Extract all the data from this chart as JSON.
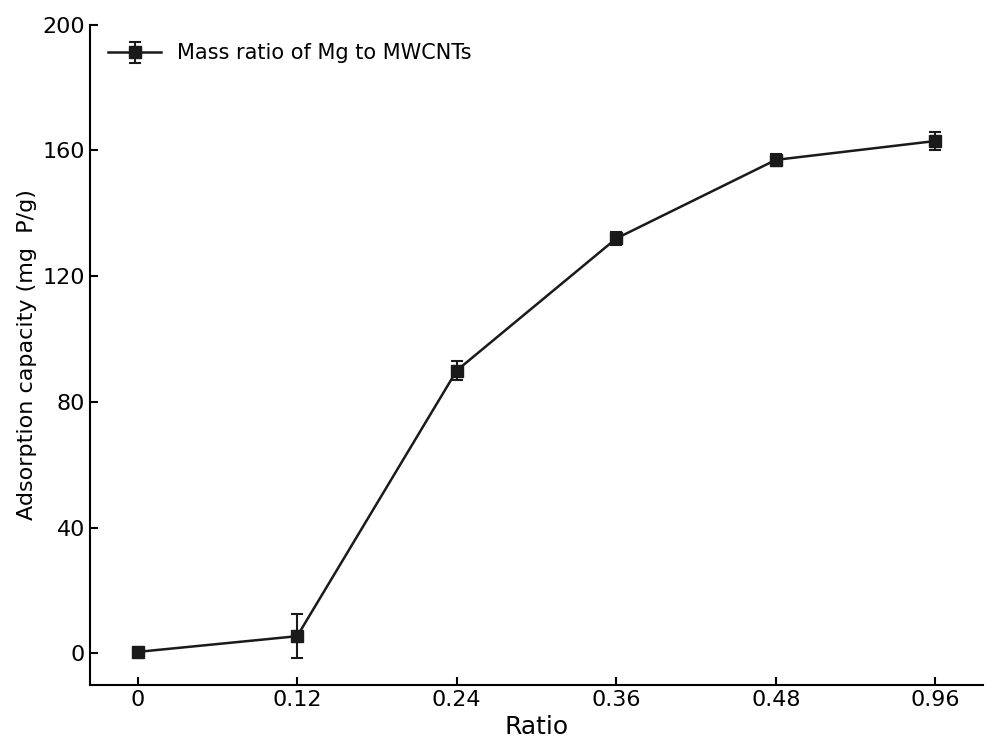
{
  "x_labels": [
    "0",
    "0.12",
    "0.24",
    "0.36",
    "0.48",
    "0.96"
  ],
  "x_positions": [
    0,
    1,
    2,
    3,
    4,
    5
  ],
  "y": [
    0.5,
    5.5,
    90.0,
    132.0,
    157.0,
    163.0
  ],
  "yerr": [
    0.5,
    7.0,
    3.0,
    2.0,
    2.0,
    3.0
  ],
  "line_color": "#1a1a1a",
  "marker": "s",
  "marker_color": "#1a1a1a",
  "marker_size": 8,
  "line_width": 1.8,
  "xlabel": "Ratio",
  "ylabel": "Adsorption capacity (mg  P/g)",
  "xlim": [
    -0.3,
    5.3
  ],
  "ylim": [
    -10,
    200
  ],
  "yticks": [
    0,
    40,
    80,
    120,
    160,
    200
  ],
  "legend_label": "Mass ratio of Mg to MWCNTs",
  "xlabel_fontsize": 18,
  "ylabel_fontsize": 16,
  "tick_fontsize": 16,
  "legend_fontsize": 15,
  "capsize": 4,
  "background_color": "#ffffff"
}
